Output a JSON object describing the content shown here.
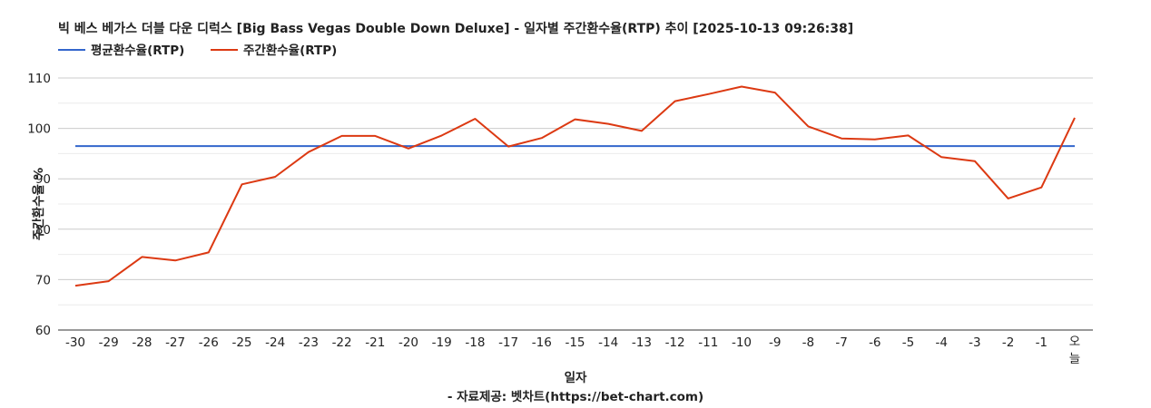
{
  "chart_data": {
    "type": "line",
    "title": "빅 베스 베가스 더블 다운 디럭스 [Big Bass Vegas Double Down Deluxe] - 일자별 주간환수율(RTP) 추이 [2025-10-13 09:26:38]",
    "xlabel": "일자",
    "ylabel": "주간환수율 %",
    "credit": "- 자료제공: 벳차트(https://bet-chart.com)",
    "categories": [
      "-30",
      "-29",
      "-28",
      "-27",
      "-26",
      "-25",
      "-24",
      "-23",
      "-22",
      "-21",
      "-20",
      "-19",
      "-18",
      "-17",
      "-16",
      "-15",
      "-14",
      "-13",
      "-12",
      "-11",
      "-10",
      "-9",
      "-8",
      "-7",
      "-6",
      "-5",
      "-4",
      "-3",
      "-2",
      "-1",
      "오늘"
    ],
    "ylim": [
      60,
      110
    ],
    "yticks": [
      "60",
      "70",
      "80",
      "90",
      "100",
      "110"
    ],
    "grid": true,
    "legend_position": "top-left",
    "series": [
      {
        "name": "평균환수율(RTP)",
        "color": "#3366cc",
        "values": [
          96.5,
          96.5,
          96.5,
          96.5,
          96.5,
          96.5,
          96.5,
          96.5,
          96.5,
          96.5,
          96.5,
          96.5,
          96.5,
          96.5,
          96.5,
          96.5,
          96.5,
          96.5,
          96.5,
          96.5,
          96.5,
          96.5,
          96.5,
          96.5,
          96.5,
          96.5,
          96.5,
          96.5,
          96.5,
          96.5,
          96.5
        ]
      },
      {
        "name": "주간환수율(RTP)",
        "color": "#dc3912",
        "values": [
          68.8,
          69.7,
          74.5,
          73.8,
          75.4,
          88.9,
          90.4,
          95.3,
          98.5,
          98.5,
          96.0,
          98.6,
          101.9,
          96.4,
          98.1,
          101.8,
          100.9,
          99.5,
          105.4,
          106.8,
          108.3,
          107.1,
          100.4,
          98.0,
          97.8,
          98.6,
          94.3,
          93.5,
          86.1,
          88.3,
          102.1
        ]
      }
    ]
  }
}
